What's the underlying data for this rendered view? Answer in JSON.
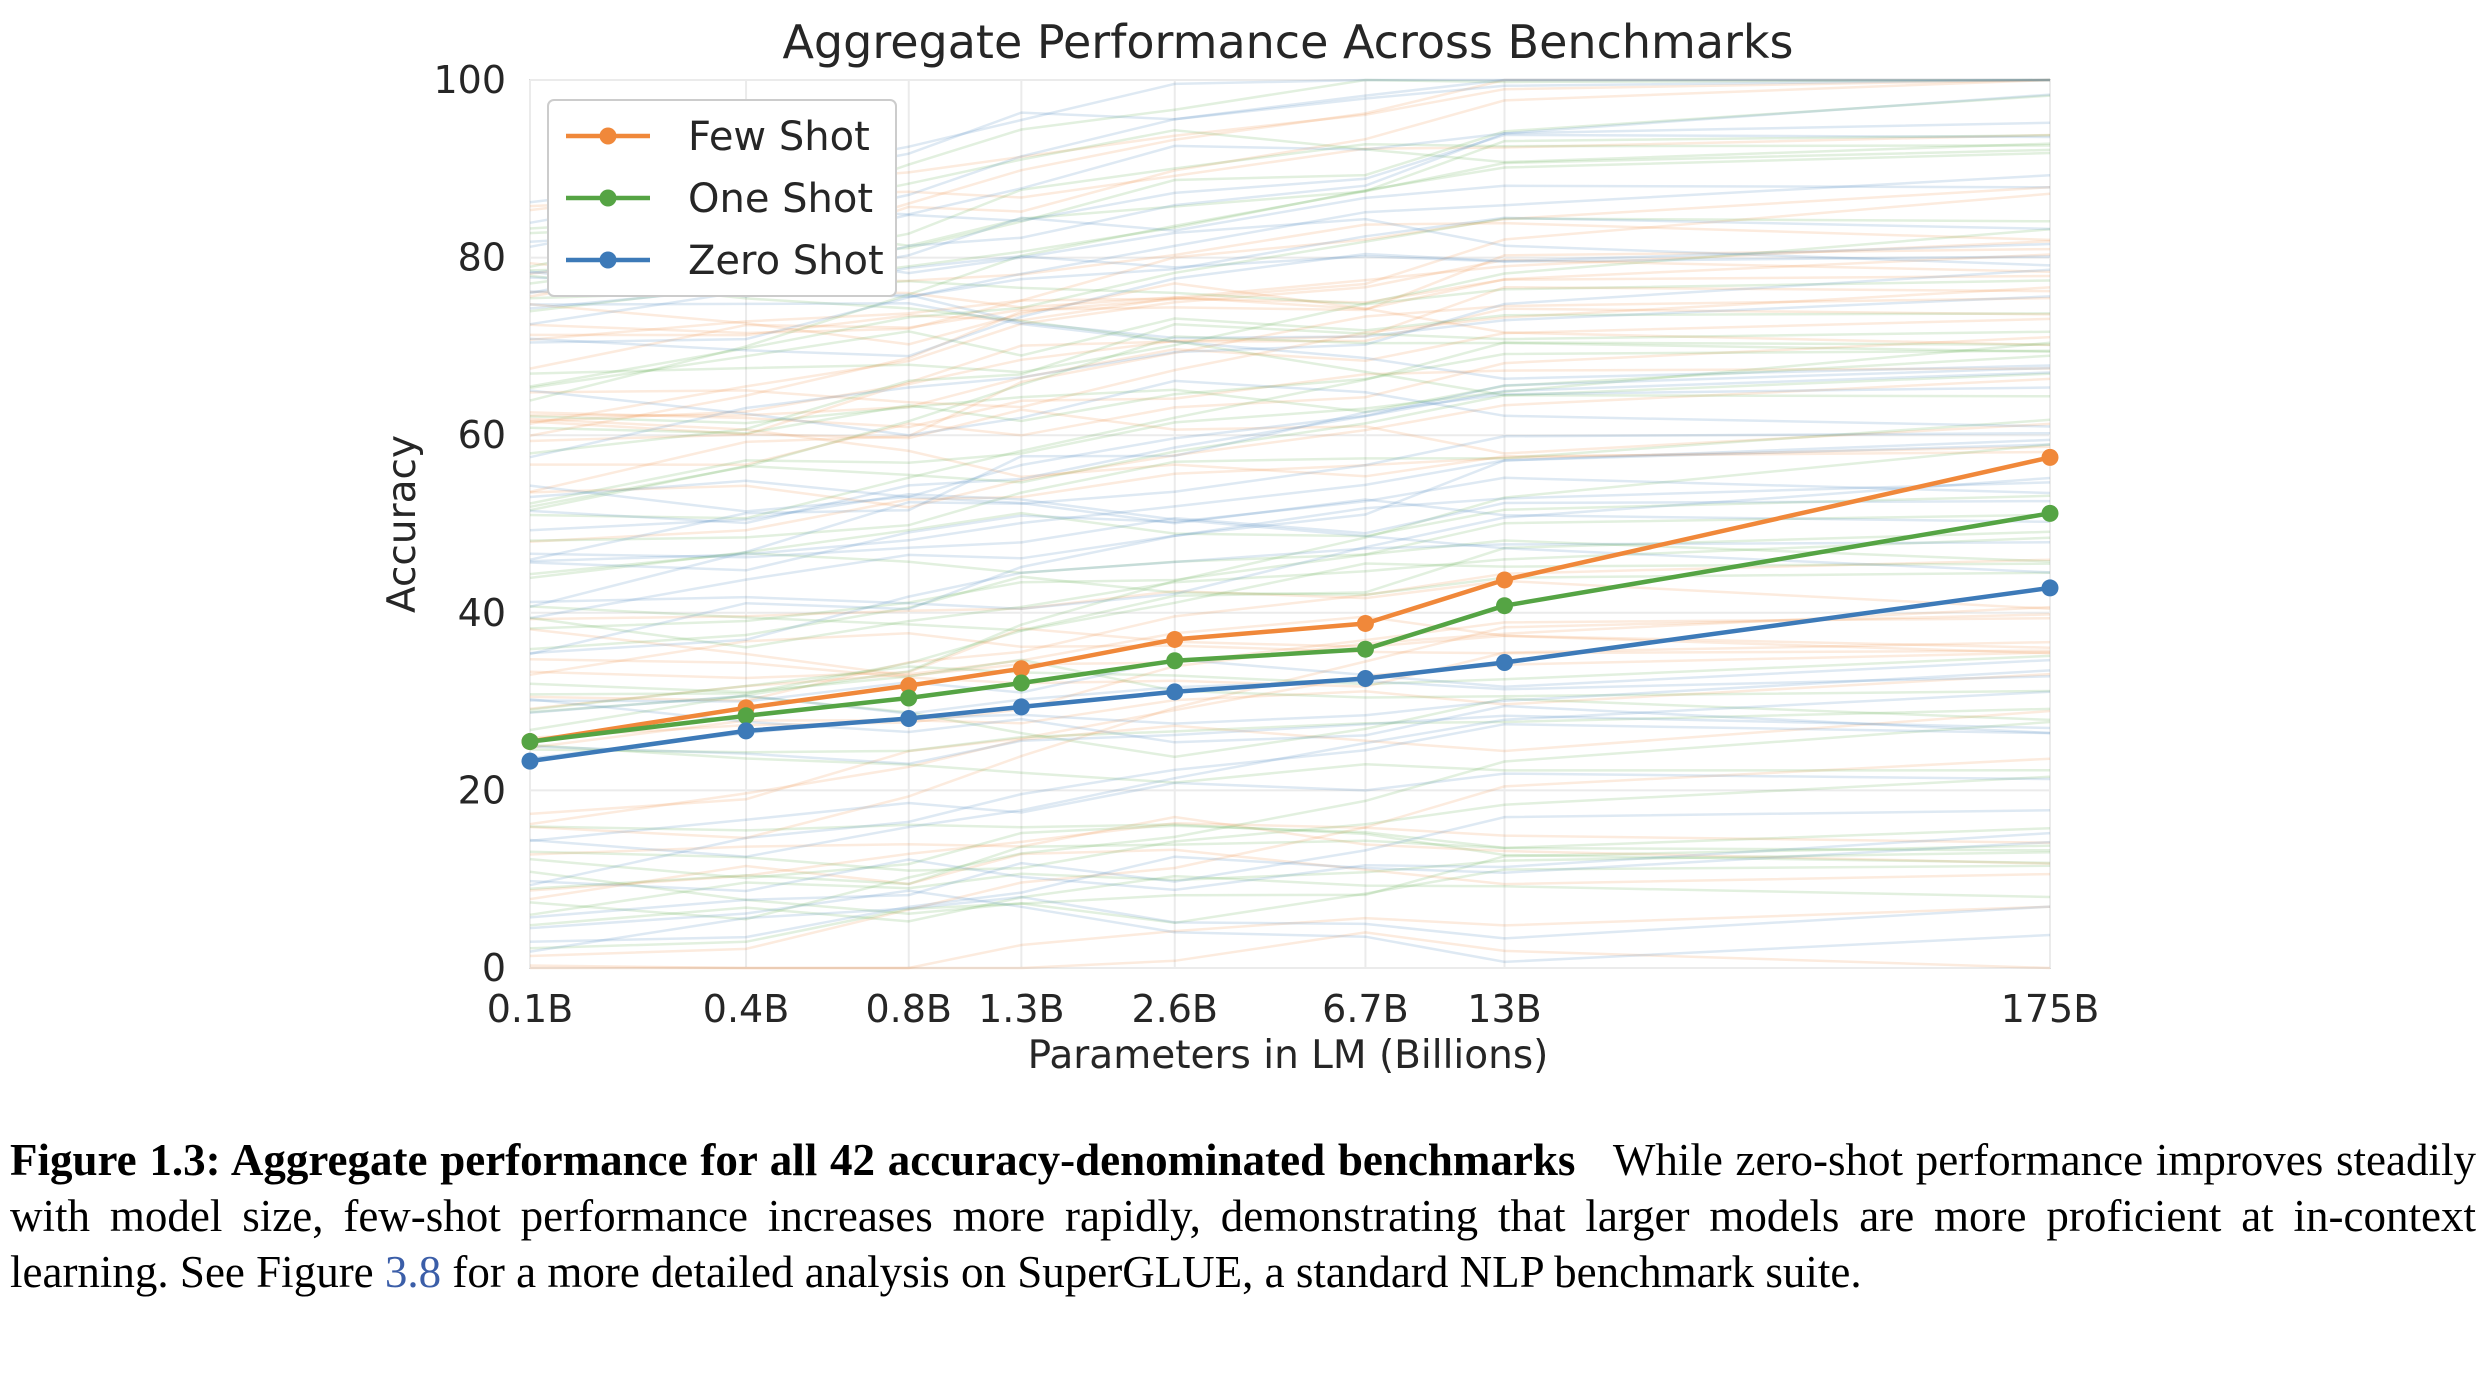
{
  "chart_data": {
    "type": "line",
    "title": "Aggregate Performance Across Benchmarks",
    "xlabel": "Parameters in LM (Billions)",
    "ylabel": "Accuracy",
    "categories": [
      "0.1B",
      "0.4B",
      "0.8B",
      "1.3B",
      "2.6B",
      "6.7B",
      "13B",
      "175B"
    ],
    "x_positions": [
      0.125,
      0.35,
      0.76,
      1.3,
      2.7,
      6.7,
      13,
      175
    ],
    "x_scale": "log",
    "ylim": [
      0,
      100
    ],
    "yticks": [
      0,
      20,
      40,
      60,
      80,
      100
    ],
    "grid": true,
    "legend_position": "top-left",
    "series": [
      {
        "name": "Few Shot",
        "color": "#f0883a",
        "values": [
          25.5,
          29.3,
          31.8,
          33.7,
          37.0,
          38.8,
          43.7,
          57.5
        ]
      },
      {
        "name": "One Shot",
        "color": "#55a444",
        "values": [
          25.5,
          28.4,
          30.4,
          32.1,
          34.6,
          35.9,
          40.8,
          51.2
        ]
      },
      {
        "name": "Zero Shot",
        "color": "#3d7ab8",
        "values": [
          23.3,
          26.7,
          28.1,
          29.4,
          31.1,
          32.6,
          34.4,
          42.8
        ]
      }
    ],
    "background_series_note": "faint lines for the 42 individual benchmarks"
  },
  "caption": {
    "bold": "Figure 1.3: Aggregate performance for all 42 accuracy-denominated benchmarks",
    "text_before_link": "While zero-shot performance improves steadily with model size, few-shot performance increases more rapidly, demonstrating that larger models are more proficient at in-context learning. See Figure ",
    "link": "3.8",
    "text_after_link": " for a more detailed analysis on SuperGLUE, a standard NLP benchmark suite."
  }
}
